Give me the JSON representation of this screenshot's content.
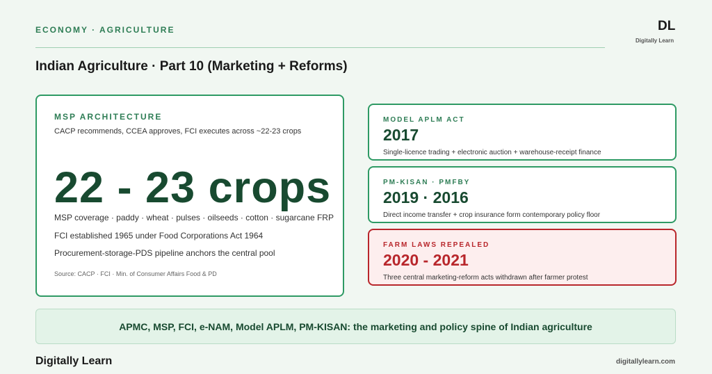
{
  "header": {
    "kicker": "ECONOMY · AGRICULTURE",
    "logo": "DL",
    "logo_caption": "Digitally Learn",
    "title": "Indian Agriculture · Part 10 (Marketing + Reforms)"
  },
  "main_card": {
    "label": "MSP ARCHITECTURE",
    "subtitle": "CACP recommends, CCEA approves, FCI executes across ~22-23 crops",
    "headline": "22 - 23 crops",
    "points": [
      "MSP coverage · paddy · wheat · pulses · oilseeds · cotton · sugarcane FRP",
      "FCI established 1965 under Food Corporations Act 1964",
      "Procurement-storage-PDS pipeline anchors the central pool"
    ],
    "source": "Source: CACP · FCI · Min. of Consumer Affairs Food & PD"
  },
  "side_cards": [
    {
      "label": "MODEL APLM ACT",
      "value": "2017",
      "caption": "Single-licence trading + electronic auction + warehouse-receipt finance"
    },
    {
      "label": "PM-KISAN · PMFBY",
      "value": "2019 · 2016",
      "caption": "Direct income transfer + crop insurance form contemporary policy floor"
    },
    {
      "label": "FARM LAWS REPEALED",
      "value": "2020 - 2021",
      "caption": "Three central marketing-reform acts withdrawn after farmer protest"
    }
  ],
  "banner": "APMC, MSP, FCI, e-NAM, Model APLM, PM-KISAN: the marketing and policy spine of Indian agriculture",
  "footer": {
    "brand": "Digitally Learn",
    "url": "digitallylearn.com"
  }
}
